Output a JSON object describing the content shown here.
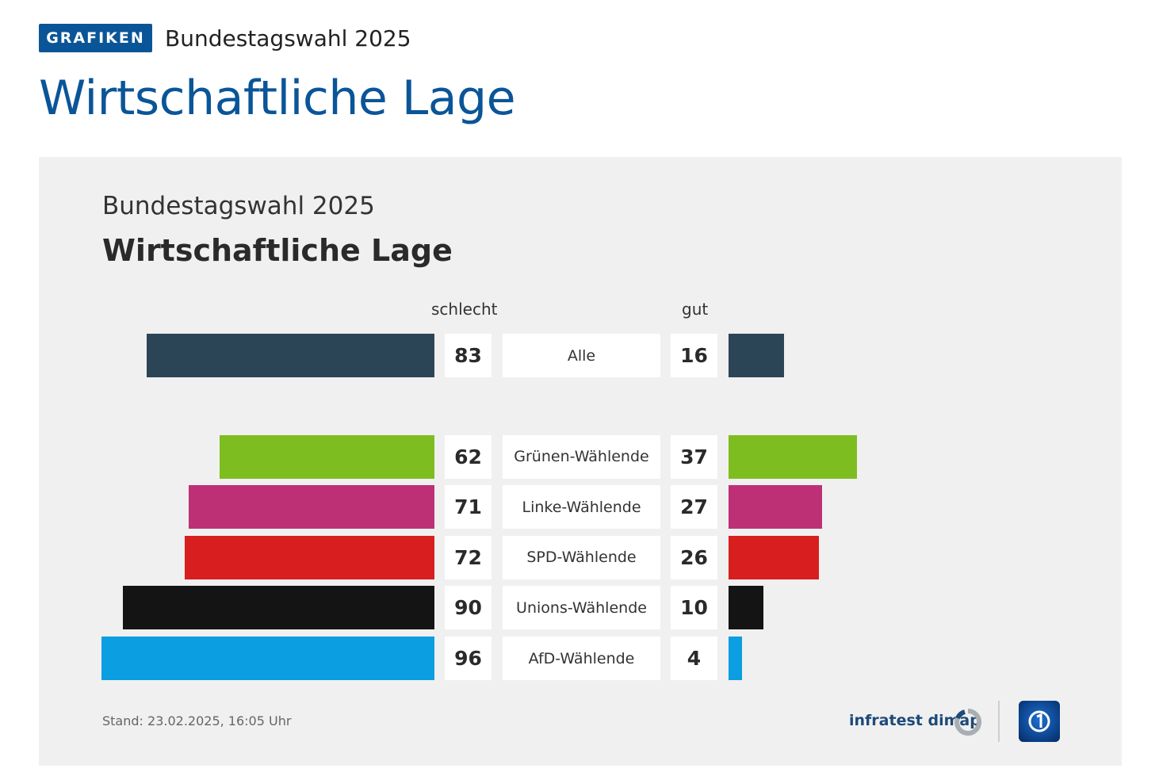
{
  "header": {
    "badge": "GRAFIKEN",
    "subtitle": "Bundestagswahl 2025",
    "title": "Wirtschaftliche Lage"
  },
  "chart_data": {
    "type": "bar",
    "subtitle": "Bundestagswahl 2025",
    "title": "Wirtschaftliche Lage",
    "left_label": "schlecht",
    "right_label": "gut",
    "unit": "percent",
    "xlim": [
      0,
      100
    ],
    "rows": [
      {
        "category": "Alle",
        "schlecht": 83,
        "gut": 16,
        "color": "#2b4556",
        "group": 0
      },
      {
        "category": "Grünen-Wählende",
        "schlecht": 62,
        "gut": 37,
        "color": "#7ebd20",
        "group": 1
      },
      {
        "category": "Linke-Wählende",
        "schlecht": 71,
        "gut": 27,
        "color": "#be3075",
        "group": 1
      },
      {
        "category": "SPD-Wählende",
        "schlecht": 72,
        "gut": 26,
        "color": "#d81e1e",
        "group": 1
      },
      {
        "category": "Unions-Wählende",
        "schlecht": 90,
        "gut": 10,
        "color": "#141414",
        "group": 1
      },
      {
        "category": "AfD-Wählende",
        "schlecht": 96,
        "gut": 4,
        "color": "#0b9ee1",
        "group": 1
      }
    ]
  },
  "footer": {
    "stand": "Stand:  23.02.2025, 16:05 Uhr",
    "source": "infratest dimap"
  },
  "logos": {
    "source_logo_icon": "infratest-dimap-logo",
    "broadcaster_logo_icon": "ard-das-erste-logo"
  }
}
